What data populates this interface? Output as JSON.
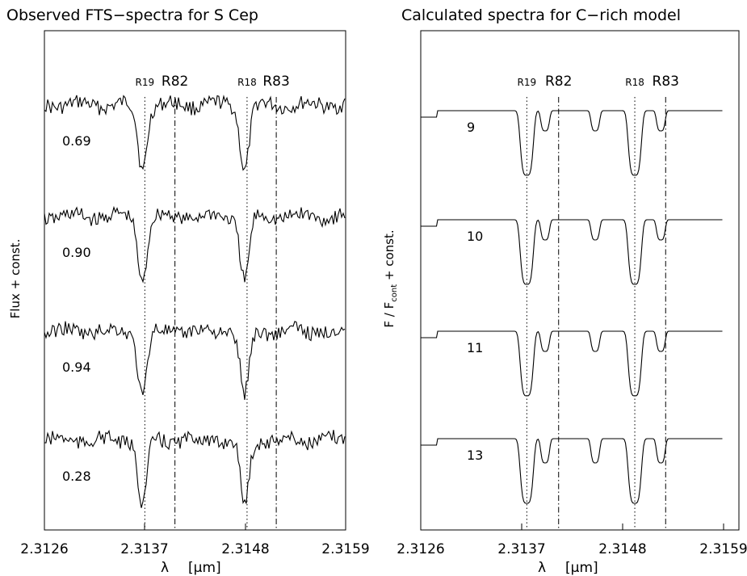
{
  "chart_data": [
    {
      "type": "line",
      "title": "Observed FTS−spectra for S Cep",
      "xlabel_greek": "λ",
      "xlabel_unit": "[μm]",
      "ylabel": "Flux + const.",
      "xlim": [
        2.3126,
        2.3159
      ],
      "x_ticks": [
        "2.3126",
        "2.3137",
        "2.3148",
        "2.3159"
      ],
      "line_markers": [
        {
          "label": "R19",
          "x": 2.3137,
          "style": "dotted"
        },
        {
          "label": "R82",
          "x": 2.31403,
          "style": "dashdot"
        },
        {
          "label": "R18",
          "x": 2.31482,
          "style": "dotted"
        },
        {
          "label": "R83",
          "x": 2.31514,
          "style": "dashdot"
        }
      ],
      "series": [
        {
          "name": "0.69",
          "kind": "observed"
        },
        {
          "name": "0.90",
          "kind": "observed"
        },
        {
          "name": "0.94",
          "kind": "observed"
        },
        {
          "name": "0.28",
          "kind": "observed"
        }
      ]
    },
    {
      "type": "line",
      "title": "Calculated spectra for C−rich model",
      "xlabel_greek": "λ",
      "xlabel_unit": "[μm]",
      "ylabel_main": "F / F",
      "ylabel_sub": "cont",
      "ylabel_tail": " + const.",
      "xlim": [
        2.3126,
        2.3159
      ],
      "x_ticks": [
        "2.3126",
        "2.3137",
        "2.3148",
        "2.3159"
      ],
      "line_markers": [
        {
          "label": "R19",
          "x": 2.3137,
          "style": "dotted"
        },
        {
          "label": "R82",
          "x": 2.31403,
          "style": "dashdot"
        },
        {
          "label": "R18",
          "x": 2.31482,
          "style": "dotted"
        },
        {
          "label": "R83",
          "x": 2.31514,
          "style": "dashdot"
        }
      ],
      "series": [
        {
          "name": "9",
          "kind": "model"
        },
        {
          "name": "10",
          "kind": "model"
        },
        {
          "name": "11",
          "kind": "model"
        },
        {
          "name": "13",
          "kind": "model"
        }
      ]
    }
  ]
}
